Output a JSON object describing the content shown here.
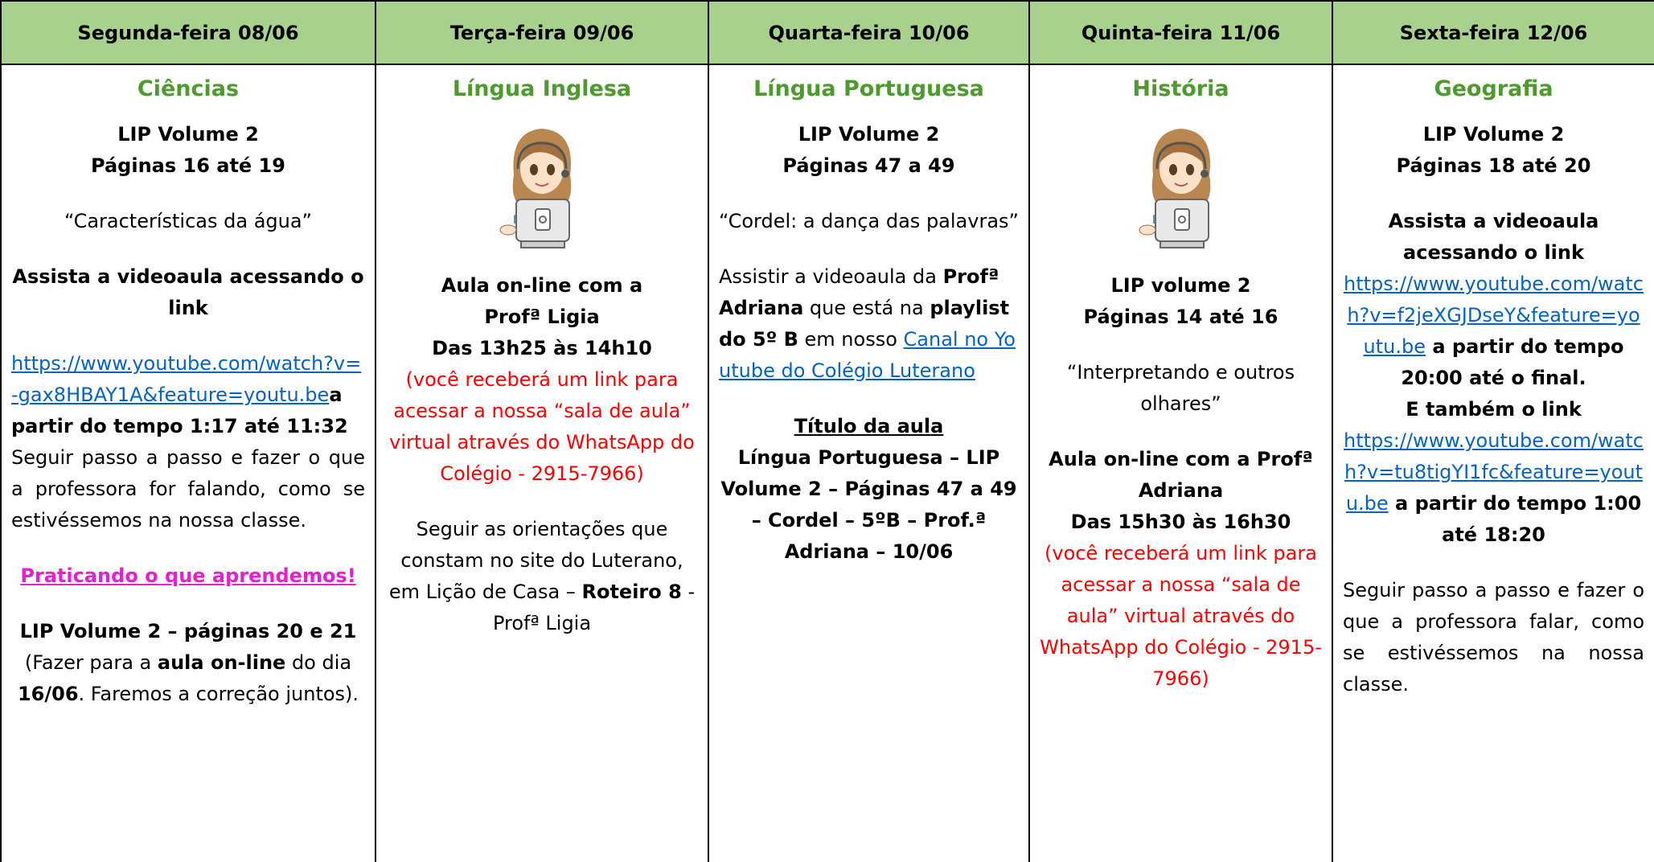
{
  "columns": [
    {
      "header": "Segunda-feira 08/06",
      "subject": "Ciências",
      "paragraphs": [
        {
          "align": "center",
          "runs": [
            {
              "style": "bold",
              "text": "LIP Volume 2\nPáginas 16 até 19"
            }
          ]
        },
        {
          "align": "center",
          "runs": [
            {
              "style": "normal",
              "text": "“Características da água”"
            }
          ]
        },
        {
          "align": "center",
          "runs": [
            {
              "style": "bold",
              "text": "Assista a videoaula acessando o link"
            }
          ]
        },
        {
          "align": "justify",
          "runs": [
            {
              "style": "link",
              "text": "https://www.youtube.com/watch?v=-gax8HBAY1A&feature=youtu.be"
            },
            {
              "style": "bold",
              "text": "a partir do tempo 1:17 até 11:32"
            },
            {
              "style": "normal",
              "text": "\nSeguir passo a passo e fazer o que a professora for falando, como se estivéssemos na nossa classe."
            }
          ]
        },
        {
          "align": "center",
          "runs": [
            {
              "style": "magenta",
              "text": "Praticando o que aprendemos!"
            }
          ]
        },
        {
          "align": "center",
          "runs": [
            {
              "style": "bold",
              "text": "LIP Volume 2 – páginas 20 e 21"
            },
            {
              "style": "normal",
              "text": "\n(Fazer para a "
            },
            {
              "style": "bold",
              "text": "aula on-line"
            },
            {
              "style": "normal",
              "text": " do dia "
            },
            {
              "style": "bold",
              "text": "16/06"
            },
            {
              "style": "normal",
              "text": ". Faremos a correção juntos)."
            }
          ]
        }
      ]
    },
    {
      "header": "Terça-feira 09/06",
      "subject": "Língua Inglesa",
      "paragraphs": [
        {
          "align": "center",
          "runs": [
            {
              "style": "bold",
              "text": "Aula on-line com a\nProfª Ligia\nDas 13h25 às 14h10"
            },
            {
              "style": "red",
              "text": "\n(você receberá um link para acessar a nossa “sala de aula” virtual através do WhatsApp do Colégio - 2915-7966)"
            }
          ]
        },
        {
          "align": "center",
          "runs": [
            {
              "style": "normal",
              "text": "Seguir as orientações que constam no site do Luterano, em Lição de Casa – "
            },
            {
              "style": "bold",
              "text": "Roteiro 8"
            },
            {
              "style": "normal",
              "text": "  - Profª Ligia"
            }
          ]
        }
      ]
    },
    {
      "header": "Quarta-feira 10/06",
      "subject": "Língua Portuguesa",
      "paragraphs": [
        {
          "align": "center",
          "runs": [
            {
              "style": "bold",
              "text": "LIP Volume 2\nPáginas 47 a 49"
            }
          ]
        },
        {
          "align": "center",
          "runs": [
            {
              "style": "normal",
              "text": "“Cordel: a dança das palavras”"
            }
          ]
        },
        {
          "align": "left",
          "runs": [
            {
              "style": "normal",
              "text": "Assistir a videoaula da "
            },
            {
              "style": "bold",
              "text": "Profª Adriana"
            },
            {
              "style": "normal",
              "text": " que está na "
            },
            {
              "style": "bold",
              "text": "playlist do 5º B"
            },
            {
              "style": "normal",
              "text": " em nosso "
            },
            {
              "style": "link",
              "text": "Canal no Youtube do Colégio Luterano"
            }
          ]
        },
        {
          "align": "center",
          "runs": [
            {
              "style": "bold-underline",
              "text": "Título da aula"
            },
            {
              "style": "bold",
              "text": "\nLíngua Portuguesa – LIP Volume 2 – Páginas 47 a 49 – Cordel – 5ºB – Prof.ª Adriana – 10/06"
            }
          ]
        }
      ]
    },
    {
      "header": "Quinta-feira 11/06",
      "subject": "História",
      "paragraphs": [
        {
          "align": "center",
          "runs": [
            {
              "style": "bold",
              "text": "LIP volume 2\nPáginas 14 até 16"
            }
          ]
        },
        {
          "align": "center",
          "runs": [
            {
              "style": "normal",
              "text": "“Interpretando e outros olhares”"
            }
          ]
        },
        {
          "align": "center",
          "runs": [
            {
              "style": "bold",
              "text": "Aula on-line com a Profª Adriana\nDas 15h30 às 16h30"
            },
            {
              "style": "red",
              "text": "\n(você receberá um link para acessar a nossa “sala de aula” virtual através do WhatsApp do Colégio - 2915-7966)"
            }
          ]
        }
      ]
    },
    {
      "header": "Sexta-feira 12/06",
      "subject": "Geografia",
      "paragraphs": [
        {
          "align": "center",
          "runs": [
            {
              "style": "bold",
              "text": "LIP Volume 2\nPáginas 18 até 20"
            }
          ]
        },
        {
          "align": "center",
          "runs": [
            {
              "style": "bold",
              "text": "Assista a videoaula\nacessando o link\n"
            },
            {
              "style": "link",
              "text": "https://www.youtube.com/watch?v=f2jeXGJDseY&feature=youtu.be"
            },
            {
              "style": "bold",
              "text": " a partir do tempo 20:00 até o final.\nE também o link\n"
            },
            {
              "style": "link",
              "text": "https://www.youtube.com/watch?v=tu8tigYI1fc&feature=youtu.be"
            },
            {
              "style": "bold",
              "text": " a partir do tempo 1:00 até 18:20"
            }
          ]
        },
        {
          "align": "justify",
          "runs": [
            {
              "style": "normal",
              "text": "Seguir passo a passo e fazer o que a professora falar, como se estivéssemos na nossa classe."
            }
          ]
        }
      ]
    }
  ]
}
